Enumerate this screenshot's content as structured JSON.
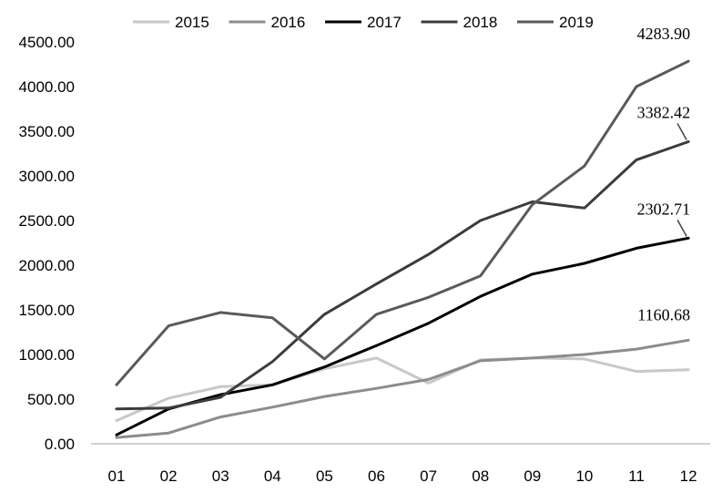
{
  "chart_data": {
    "type": "line",
    "title": "",
    "xlabel": "",
    "ylabel": "",
    "categories": [
      "01",
      "02",
      "03",
      "04",
      "05",
      "06",
      "07",
      "08",
      "09",
      "10",
      "11",
      "12"
    ],
    "y_ticks": [
      "0.00",
      "500.00",
      "1000.00",
      "1500.00",
      "2000.00",
      "2500.00",
      "3000.00",
      "3500.00",
      "4000.00",
      "4500.00"
    ],
    "ylim": [
      0,
      4500
    ],
    "grid": false,
    "legend_position": "top",
    "series": [
      {
        "name": "2015",
        "color": "#c8c8c8",
        "values": [
          260,
          510,
          640,
          660,
          840,
          960,
          680,
          940,
          960,
          950,
          810,
          830
        ]
      },
      {
        "name": "2016",
        "color": "#8c8c8c",
        "values": [
          70,
          120,
          300,
          410,
          530,
          620,
          720,
          930,
          960,
          1000,
          1060,
          1160.68
        ]
      },
      {
        "name": "2017",
        "color": "#000000",
        "values": [
          100,
          390,
          550,
          660,
          860,
          1100,
          1350,
          1650,
          1900,
          2020,
          2190,
          2302.71
        ]
      },
      {
        "name": "2018",
        "color": "#3c3c3c",
        "values": [
          390,
          400,
          520,
          920,
          1450,
          1790,
          2120,
          2500,
          2710,
          2640,
          3180,
          3382.42
        ]
      },
      {
        "name": "2019",
        "color": "#5a5a5a",
        "values": [
          660,
          1320,
          1470,
          1410,
          950,
          1450,
          1640,
          1880,
          2680,
          3110,
          4000,
          4283.9
        ]
      }
    ],
    "annotations": [
      {
        "text": "4283.90",
        "series": "2019",
        "point": 11
      },
      {
        "text": "3382.42",
        "series": "2018",
        "point": 11
      },
      {
        "text": "2302.71",
        "series": "2017",
        "point": 11
      },
      {
        "text": "1160.68",
        "series": "2016",
        "point": 11
      }
    ]
  }
}
